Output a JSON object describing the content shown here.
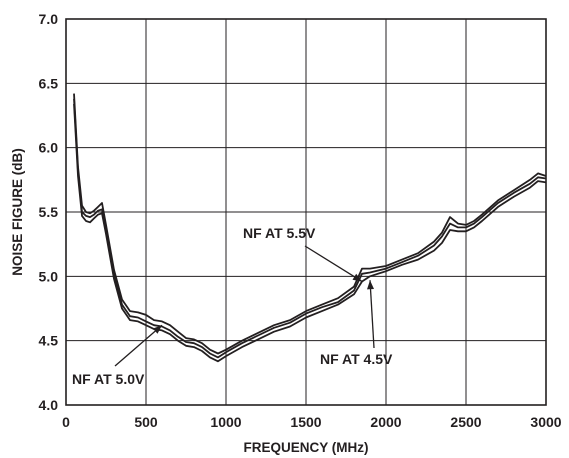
{
  "chart_data": {
    "type": "line",
    "title": "",
    "xlabel": "FREQUENCY (MHz)",
    "ylabel": "NOISE FIGURE (dB)",
    "xlim": [
      0,
      3000
    ],
    "ylim": [
      4.0,
      7.0
    ],
    "xticks": [
      "0",
      "500",
      "1000",
      "1500",
      "2000",
      "2500",
      "3000"
    ],
    "yticks": [
      "4.0",
      "4.5",
      "5.0",
      "5.5",
      "6.0",
      "6.5",
      "7.0"
    ],
    "grid": true,
    "legend": "none",
    "line_color": "#231f20",
    "series": [
      {
        "name": "NF AT 5.5V",
        "x": [
          50,
          75,
          100,
          125,
          150,
          175,
          200,
          225,
          250,
          300,
          350,
          400,
          450,
          500,
          550,
          600,
          650,
          700,
          750,
          800,
          850,
          900,
          950,
          1000,
          1100,
          1200,
          1300,
          1400,
          1500,
          1600,
          1700,
          1800,
          1850,
          1900,
          2000,
          2100,
          2200,
          2300,
          2350,
          2400,
          2450,
          2500,
          2550,
          2600,
          2700,
          2800,
          2900,
          2950,
          3000
        ],
        "y": [
          6.42,
          5.85,
          5.55,
          5.5,
          5.49,
          5.51,
          5.54,
          5.57,
          5.4,
          5.05,
          4.82,
          4.73,
          4.72,
          4.7,
          4.66,
          4.65,
          4.62,
          4.57,
          4.52,
          4.51,
          4.48,
          4.43,
          4.4,
          4.43,
          4.5,
          4.56,
          4.62,
          4.66,
          4.73,
          4.78,
          4.83,
          4.92,
          5.06,
          5.06,
          5.08,
          5.13,
          5.18,
          5.27,
          5.34,
          5.46,
          5.41,
          5.4,
          5.43,
          5.48,
          5.59,
          5.67,
          5.75,
          5.8,
          5.78
        ]
      },
      {
        "name": "NF AT 5.0V",
        "x": [
          50,
          75,
          100,
          125,
          150,
          175,
          200,
          225,
          250,
          300,
          350,
          400,
          450,
          500,
          550,
          600,
          650,
          700,
          750,
          800,
          850,
          900,
          950,
          1000,
          1100,
          1200,
          1300,
          1400,
          1500,
          1600,
          1700,
          1800,
          1850,
          1900,
          2000,
          2100,
          2200,
          2300,
          2350,
          2400,
          2450,
          2500,
          2550,
          2600,
          2700,
          2800,
          2900,
          2950,
          3000
        ],
        "y": [
          6.38,
          5.82,
          5.5,
          5.47,
          5.46,
          5.48,
          5.51,
          5.52,
          5.36,
          5.01,
          4.78,
          4.69,
          4.68,
          4.65,
          4.62,
          4.61,
          4.58,
          4.53,
          4.49,
          4.48,
          4.45,
          4.4,
          4.37,
          4.41,
          4.48,
          4.54,
          4.6,
          4.64,
          4.71,
          4.76,
          4.8,
          4.89,
          5.02,
          5.03,
          5.06,
          5.11,
          5.16,
          5.24,
          5.31,
          5.41,
          5.38,
          5.38,
          5.41,
          5.46,
          5.57,
          5.65,
          5.72,
          5.77,
          5.76
        ]
      },
      {
        "name": "NF AT 4.5V",
        "x": [
          50,
          75,
          100,
          125,
          150,
          175,
          200,
          225,
          250,
          300,
          350,
          400,
          450,
          500,
          550,
          600,
          650,
          700,
          750,
          800,
          850,
          900,
          950,
          1000,
          1100,
          1200,
          1300,
          1400,
          1500,
          1600,
          1700,
          1800,
          1850,
          1900,
          2000,
          2100,
          2200,
          2300,
          2350,
          2400,
          2450,
          2500,
          2550,
          2600,
          2700,
          2800,
          2900,
          2950,
          3000
        ],
        "y": [
          6.34,
          5.78,
          5.47,
          5.43,
          5.42,
          5.45,
          5.48,
          5.49,
          5.33,
          4.98,
          4.75,
          4.66,
          4.65,
          4.62,
          4.59,
          4.58,
          4.55,
          4.5,
          4.46,
          4.45,
          4.42,
          4.37,
          4.34,
          4.38,
          4.45,
          4.51,
          4.57,
          4.61,
          4.68,
          4.73,
          4.78,
          4.86,
          4.96,
          5.0,
          5.04,
          5.09,
          5.13,
          5.2,
          5.26,
          5.36,
          5.35,
          5.35,
          5.38,
          5.43,
          5.54,
          5.62,
          5.69,
          5.74,
          5.73
        ]
      }
    ],
    "annotations": [
      {
        "text": "NF AT 5.5V",
        "series": "NF AT 5.5V",
        "point": [
          1850,
          4.96
        ]
      },
      {
        "text": "NF AT 5.0V",
        "series": "NF AT 5.0V",
        "point": [
          600,
          4.62
        ]
      },
      {
        "text": "NF AT 4.5V",
        "series": "NF AT 4.5V",
        "point": [
          1900,
          4.97
        ]
      }
    ]
  }
}
